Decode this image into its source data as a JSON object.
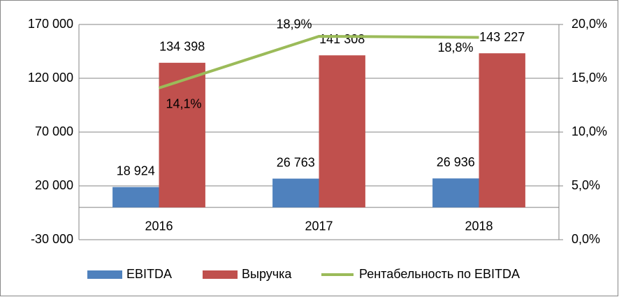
{
  "chart_data": {
    "type": "bar",
    "categories": [
      "2016",
      "2017",
      "2018"
    ],
    "series": [
      {
        "name": "EBITDA",
        "type": "bar",
        "color": "#4f81bd",
        "values": [
          18924,
          26763,
          26936
        ],
        "value_labels": [
          "18 924",
          "26 763",
          "26 936"
        ]
      },
      {
        "name": "Выручка",
        "type": "bar",
        "color": "#c0504d",
        "values": [
          134398,
          141308,
          143227
        ],
        "value_labels": [
          "134 398",
          "141 308",
          "143 227"
        ]
      },
      {
        "name": "Рентабельность по EBITDA",
        "type": "line",
        "axis": "y2",
        "color": "#9bbb59",
        "values": [
          14.1,
          18.9,
          18.8
        ],
        "value_labels": [
          "14,1%",
          "18,9%",
          "18,8%"
        ]
      }
    ],
    "ylim": [
      -30000,
      170000
    ],
    "yticks": [
      {
        "value": -30000,
        "label": "-30 000"
      },
      {
        "value": 20000,
        "label": "20 000"
      },
      {
        "value": 70000,
        "label": "70 000"
      },
      {
        "value": 120000,
        "label": "120 000"
      },
      {
        "value": 170000,
        "label": "170 000"
      }
    ],
    "y2lim": [
      0,
      20
    ],
    "y2ticks": [
      {
        "value": 0,
        "label": "0,0%"
      },
      {
        "value": 5,
        "label": "5,0%"
      },
      {
        "value": 10,
        "label": "10,0%"
      },
      {
        "value": 15,
        "label": "15,0%"
      },
      {
        "value": 20,
        "label": "20,0%"
      }
    ],
    "grid": true,
    "legend": "bottom"
  }
}
